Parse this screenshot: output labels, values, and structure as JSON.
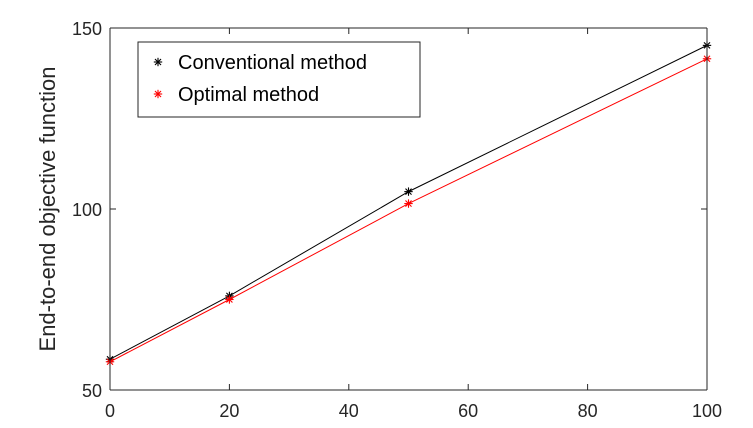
{
  "chart_data": {
    "type": "line",
    "title": "",
    "xlabel": "",
    "ylabel": "End-to-end objective function",
    "xlim": [
      0,
      100
    ],
    "ylim": [
      50,
      150
    ],
    "xticks": [
      0,
      20,
      40,
      60,
      80,
      100
    ],
    "yticks": [
      50,
      100,
      150
    ],
    "xtick_labels": [
      "0",
      "20",
      "40",
      "60",
      "80",
      "100"
    ],
    "ytick_labels": [
      "50",
      "100",
      "150"
    ],
    "grid": false,
    "legend_position": "top-left",
    "series": [
      {
        "name": "Conventional method",
        "color": "#000000",
        "marker": "asterisk",
        "x": [
          0,
          20,
          50,
          100
        ],
        "y": [
          58.5,
          76,
          104.8,
          145.2
        ]
      },
      {
        "name": "Optimal method",
        "color": "#ff0000",
        "marker": "asterisk",
        "x": [
          0,
          20,
          50,
          100
        ],
        "y": [
          57.8,
          75,
          101.5,
          141.5
        ]
      }
    ]
  }
}
